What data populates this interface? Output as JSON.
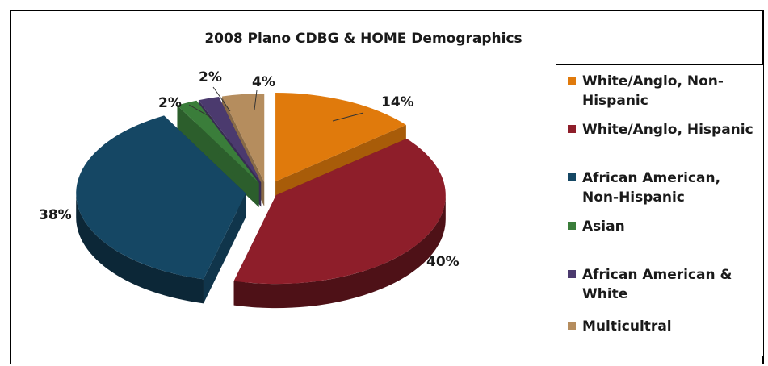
{
  "chart_data": {
    "type": "pie",
    "title": "2008 Plano CDBG & HOME Demographics",
    "slices": [
      {
        "label": "White/Anglo, Non-Hispanic",
        "value": 14,
        "data_label": "14%",
        "color": "#E07A0C"
      },
      {
        "label": "White/Anglo, Hispanic",
        "value": 40,
        "data_label": "40%",
        "color": "#8E1E2A"
      },
      {
        "label": "African American, Non-Hispanic",
        "value": 38,
        "data_label": "38%",
        "color": "#154764"
      },
      {
        "label": "Asian",
        "value": 2,
        "data_label": "2%",
        "color": "#3A7D3A"
      },
      {
        "label": "African American & White",
        "value": 2,
        "data_label": "2%",
        "color": "#4B3A6E"
      },
      {
        "label": "Multicultral",
        "value": 4,
        "data_label": "4%",
        "color": "#B58D5E"
      }
    ],
    "legend_position": "right",
    "style": "3D exploded pie"
  }
}
